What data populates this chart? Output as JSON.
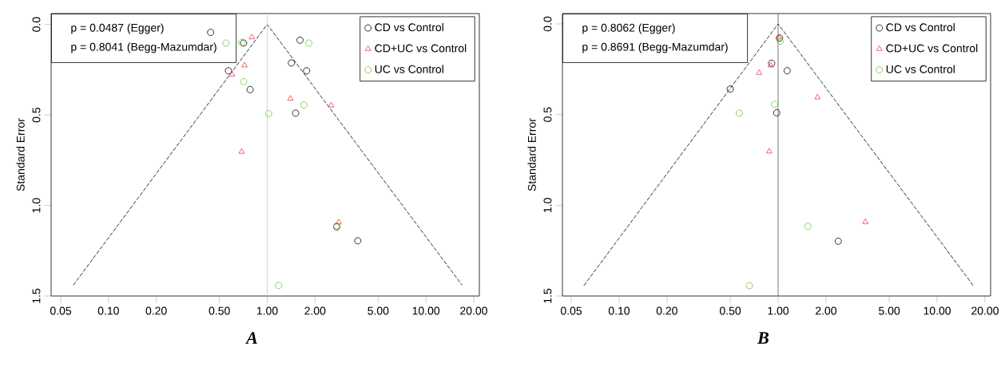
{
  "chart_data": [
    {
      "type": "scatter",
      "title": "A",
      "ylabel": "Standard Error",
      "log": "x",
      "legend": "top right",
      "grid": false,
      "xlim": [
        0.0435,
        21.7
      ],
      "ylim": [
        1.5,
        -0.06
      ],
      "xticks": [
        {
          "value": 0.05,
          "label": "0.05"
        },
        {
          "value": 0.1,
          "label": "0.10"
        },
        {
          "value": 0.2,
          "label": "0.20"
        },
        {
          "value": 0.5,
          "label": "0.50"
        },
        {
          "value": 1,
          "label": "1.00"
        },
        {
          "value": 2,
          "label": "2.00"
        },
        {
          "value": 5,
          "label": "5.00"
        },
        {
          "value": 10,
          "label": "10.00"
        },
        {
          "value": 20,
          "label": "20.00"
        }
      ],
      "yticks": [
        {
          "value": 0,
          "label": "0.0"
        },
        {
          "value": 0.5,
          "label": "0.5"
        },
        {
          "value": 1,
          "label": "1.0"
        },
        {
          "value": 1.5,
          "label": "1.5"
        }
      ],
      "annotations": [
        "p = 0.0487 (Egger)",
        "p = 0.8041 (Begg-Mazumdar)"
      ],
      "ref_lines": [
        {
          "axis": "x",
          "value": 1,
          "color": "#cccccc"
        }
      ],
      "series": [
        {
          "name": "CD vs Control",
          "color": "#000000",
          "marker": "circle",
          "x": [
            0.44,
            0.71,
            0.57,
            0.78,
            1.61,
            1.42,
            1.77,
            1.51,
            2.74,
            3.72
          ],
          "values": [
            0.044,
            0.103,
            0.256,
            0.36,
            0.087,
            0.213,
            0.256,
            0.49,
            1.118,
            1.195
          ]
        },
        {
          "name": "CD+UC vs Control",
          "color": "#ff3344",
          "marker": "triangle",
          "x": [
            0.8,
            0.72,
            0.6,
            0.69,
            1.4,
            2.53,
            2.82
          ],
          "values": [
            0.071,
            0.226,
            0.276,
            0.703,
            0.41,
            0.447,
            1.093
          ]
        },
        {
          "name": "UC vs Control",
          "color": "#66cc33",
          "marker": "circle",
          "x": [
            0.55,
            0.69,
            0.71,
            1.02,
            1.7,
            1.83,
            2.74,
            1.18
          ],
          "values": [
            0.103,
            0.099,
            0.316,
            0.493,
            0.445,
            0.103,
            1.113,
            1.442
          ]
        },
        {
          "type": "line",
          "color": "#000000",
          "marker": "none",
          "line_style": "dashed",
          "x": [
            0.06,
            1,
            16.9
          ],
          "values": [
            1.44,
            0,
            1.44
          ]
        }
      ]
    },
    {
      "type": "scatter",
      "title": "B",
      "ylabel": "Standard Error",
      "log": "x",
      "legend": "top right",
      "grid": false,
      "xlim": [
        0.044,
        21.7
      ],
      "ylim": [
        1.5,
        -0.057
      ],
      "xticks": [
        {
          "value": 0.05,
          "label": "0.05"
        },
        {
          "value": 0.1,
          "label": "0.10"
        },
        {
          "value": 0.2,
          "label": "0.20"
        },
        {
          "value": 0.5,
          "label": "0.50"
        },
        {
          "value": 1,
          "label": "1.00"
        },
        {
          "value": 2,
          "label": "2.00"
        },
        {
          "value": 5,
          "label": "5.00"
        },
        {
          "value": 10,
          "label": "10.00"
        },
        {
          "value": 20,
          "label": "20.00"
        }
      ],
      "yticks": [
        {
          "value": 0,
          "label": "0.0"
        },
        {
          "value": 0.5,
          "label": "0.5"
        },
        {
          "value": 1,
          "label": "1.0"
        },
        {
          "value": 1.5,
          "label": "1.5"
        }
      ],
      "annotations": [
        "p = 0.8062 (Egger)",
        "p = 0.8691 (Begg-Mazumdar)"
      ],
      "ref_lines": [
        {
          "axis": "x",
          "value": 1,
          "color": "#555555"
        }
      ],
      "series": [
        {
          "name": "CD vs Control",
          "color": "#000000",
          "marker": "circle",
          "x": [
            0.5,
            0.91,
            1.14,
            0.98,
            1.02,
            2.39
          ],
          "values": [
            0.359,
            0.217,
            0.258,
            0.49,
            0.078,
            1.198
          ]
        },
        {
          "name": "CD+UC vs Control",
          "color": "#ff3344",
          "marker": "triangle",
          "x": [
            1.01,
            0.76,
            0.9,
            1.77,
            0.88,
            3.54
          ],
          "values": [
            0.075,
            0.27,
            0.229,
            0.405,
            0.703,
            1.092
          ]
        },
        {
          "name": "UC vs Control",
          "color": "#66cc33",
          "marker": "circle",
          "x": [
            1.03,
            0.57,
            0.95,
            1.54,
            0.66
          ],
          "values": [
            0.095,
            0.492,
            0.443,
            1.116,
            1.443
          ]
        },
        {
          "type": "line",
          "color": "#000000",
          "marker": "none",
          "line_style": "dashed",
          "x": [
            0.06,
            1,
            16.9
          ],
          "values": [
            1.443,
            0,
            1.443
          ]
        }
      ]
    }
  ]
}
